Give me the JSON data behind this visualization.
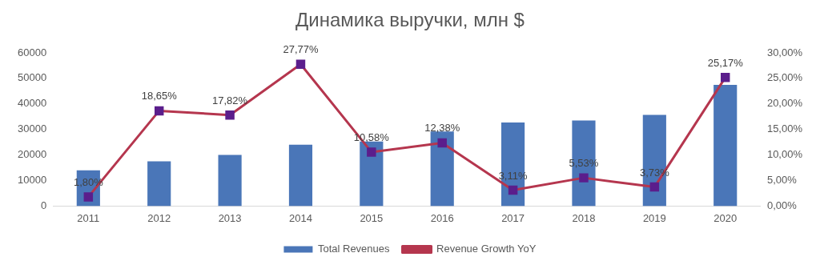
{
  "chart_data": {
    "type": "bar",
    "title": "Динамика выручки, млн $",
    "categories": [
      "2011",
      "2012",
      "2013",
      "2014",
      "2015",
      "2016",
      "2017",
      "2018",
      "2019",
      "2020"
    ],
    "series": [
      {
        "name": "Total Revenues",
        "color": "#4a76b8",
        "values": [
          14000,
          17500,
          20000,
          24000,
          25300,
          29200,
          32700,
          33500,
          35700,
          47500
        ]
      },
      {
        "name": "Revenue Growth YoY",
        "type": "line",
        "axis": "y2",
        "color": "#b5364e",
        "marker": "square",
        "values": [
          1.8,
          18.65,
          17.82,
          27.77,
          10.58,
          12.38,
          3.11,
          5.53,
          3.73,
          25.17
        ],
        "value_labels": [
          "1,80%",
          "18,65%",
          "17,82%",
          "27,77%",
          "10,58%",
          "12,38%",
          "3,11%",
          "5,53%",
          "3,73%",
          "25,17%"
        ]
      }
    ],
    "ylim": [
      0,
      60000
    ],
    "yticks": [
      0,
      10000,
      20000,
      30000,
      40000,
      50000,
      60000
    ],
    "y2lim": [
      0,
      30
    ],
    "y2ticks": [
      {
        "value": 0,
        "label": "0,00%"
      },
      {
        "value": 5,
        "label": "5,00%"
      },
      {
        "value": 10,
        "label": "10,00%"
      },
      {
        "value": 15,
        "label": "15,00%"
      },
      {
        "value": 20,
        "label": "20,00%"
      },
      {
        "value": 25,
        "label": "25,00%"
      },
      {
        "value": 30,
        "label": "30,00%"
      }
    ],
    "grid": false,
    "legend": "bottom"
  }
}
